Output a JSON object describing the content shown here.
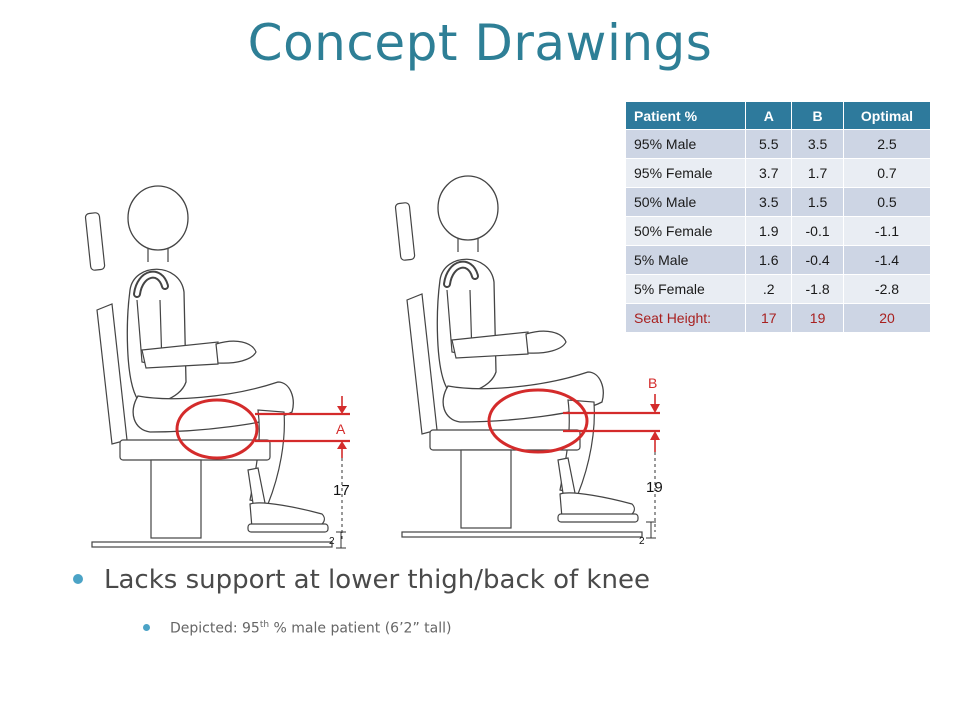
{
  "title": "Concept Drawings",
  "table": {
    "headers": [
      "Patient %",
      "A",
      "B",
      "Optimal"
    ],
    "rows": [
      [
        "95% Male",
        "5.5",
        "3.5",
        "2.5"
      ],
      [
        "95% Female",
        "3.7",
        "1.7",
        "0.7"
      ],
      [
        "50% Male",
        "3.5",
        "1.5",
        "0.5"
      ],
      [
        "50% Female",
        "1.9",
        "-0.1",
        "-1.1"
      ],
      [
        "5% Male",
        "1.6",
        "-0.4",
        "-1.4"
      ],
      [
        "5% Female",
        ".2",
        "-1.8",
        "-2.8"
      ]
    ],
    "total_row": [
      "Seat Height:",
      "17",
      "19",
      "20"
    ]
  },
  "drawing_left": {
    "marker_label": "A",
    "seat_height": "17",
    "base_dim": "2"
  },
  "drawing_right": {
    "marker_label": "B",
    "seat_height": "19",
    "base_dim": "2"
  },
  "bullets": {
    "main": "Lacks support at lower thigh/back of knee",
    "sub_prefix": "Depicted: 95",
    "sub_sup": "th",
    "sub_suffix": " % male patient (6’2” tall)"
  },
  "colors": {
    "title": "#2e7f96",
    "accent_red": "#d42b2b",
    "table_header": "#2e7a9c",
    "bullet": "#4ba3c6"
  }
}
